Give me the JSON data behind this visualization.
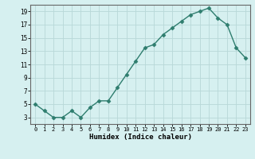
{
  "x": [
    0,
    1,
    2,
    3,
    4,
    5,
    6,
    7,
    8,
    9,
    10,
    11,
    12,
    13,
    14,
    15,
    16,
    17,
    18,
    19,
    20,
    21,
    22,
    23
  ],
  "y": [
    5,
    4,
    3,
    3,
    4,
    3,
    4.5,
    5.5,
    5.5,
    7.5,
    9.5,
    11.5,
    13.5,
    14,
    15.5,
    16.5,
    17.5,
    18.5,
    19,
    19.5,
    18,
    17,
    13.5,
    12
  ],
  "line_color": "#2e7d6e",
  "marker": "D",
  "marker_size": 2.5,
  "bg_color": "#d6f0f0",
  "grid_color": "#b8d8d8",
  "xlabel": "Humidex (Indice chaleur)",
  "xlim": [
    -0.5,
    23.5
  ],
  "ylim": [
    2,
    20
  ],
  "yticks": [
    3,
    5,
    7,
    9,
    11,
    13,
    15,
    17,
    19
  ],
  "xticks": [
    0,
    1,
    2,
    3,
    4,
    5,
    6,
    7,
    8,
    9,
    10,
    11,
    12,
    13,
    14,
    15,
    16,
    17,
    18,
    19,
    20,
    21,
    22,
    23
  ]
}
